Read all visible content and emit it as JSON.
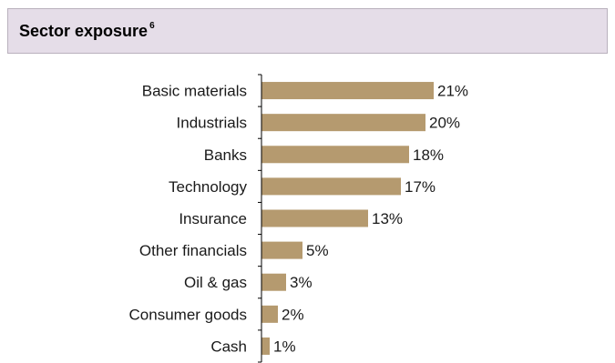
{
  "header": {
    "title": "Sector exposure",
    "footnote": "6",
    "background": "#e5dde8",
    "border": "#b9b1bd"
  },
  "chart_data": {
    "type": "bar",
    "orientation": "horizontal",
    "categories": [
      "Basic materials",
      "Industrials",
      "Banks",
      "Technology",
      "Insurance",
      "Other financials",
      "Oil & gas",
      "Consumer goods",
      "Cash"
    ],
    "values": [
      21,
      20,
      18,
      17,
      13,
      5,
      3,
      2,
      1
    ],
    "value_labels": [
      "21%",
      "20%",
      "18%",
      "17%",
      "13%",
      "5%",
      "3%",
      "2%",
      "1%"
    ],
    "unit": "%",
    "bar_color": "#b59a6f",
    "axis_color": "#000000",
    "xlim": [
      0,
      21
    ],
    "grid": false,
    "legend": "none"
  }
}
